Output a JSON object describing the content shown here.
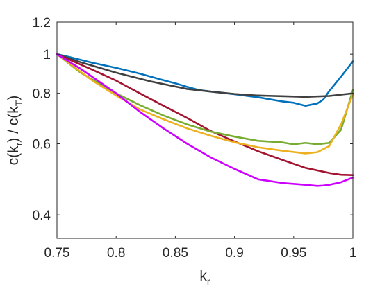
{
  "chart_data": {
    "type": "line",
    "title": "",
    "xlabel": {
      "main": "k",
      "sub": "r"
    },
    "ylabel": {
      "num_main": "c(k",
      "num_sub": "r",
      "mid": ") / c(k",
      "den_sub": "T",
      "end": ")"
    },
    "xlim": [
      0.75,
      1.0
    ],
    "ylim": [
      0.35,
      1.2
    ],
    "yscale": "log",
    "xticks": [
      0.75,
      0.8,
      0.85,
      0.9,
      0.95,
      1.0
    ],
    "xtick_labels": [
      "0.75",
      "0.8",
      "0.85",
      "0.9",
      "0.95",
      "1"
    ],
    "yticks": [
      0.4,
      0.6,
      0.8,
      1.0,
      1.2
    ],
    "ytick_labels": [
      "0.4",
      "0.6",
      "0.8",
      "1",
      "1.2"
    ],
    "grid": false,
    "legend": "none",
    "series": [
      {
        "color": "#0072BD",
        "x": [
          0.75,
          0.76,
          0.78,
          0.8,
          0.82,
          0.84,
          0.85,
          0.86,
          0.87,
          0.88,
          0.9,
          0.92,
          0.94,
          0.95,
          0.96,
          0.97,
          0.975,
          0.98,
          0.99,
          1.0
        ],
        "y": [
          1.0,
          0.985,
          0.952,
          0.925,
          0.895,
          0.862,
          0.847,
          0.83,
          0.815,
          0.808,
          0.796,
          0.782,
          0.764,
          0.758,
          0.745,
          0.755,
          0.772,
          0.81,
          0.88,
          0.96
        ]
      },
      {
        "color": "#404040",
        "x": [
          0.75,
          0.77,
          0.8,
          0.83,
          0.86,
          0.88,
          0.9,
          0.92,
          0.94,
          0.96,
          0.98,
          1.0
        ],
        "y": [
          1.0,
          0.955,
          0.9,
          0.855,
          0.82,
          0.808,
          0.797,
          0.79,
          0.787,
          0.784,
          0.788,
          0.8
        ]
      },
      {
        "color": "#A2142F",
        "x": [
          0.75,
          0.78,
          0.8,
          0.82,
          0.84,
          0.86,
          0.88,
          0.9,
          0.92,
          0.94,
          0.96,
          0.98,
          0.99,
          1.0
        ],
        "y": [
          1.0,
          0.915,
          0.86,
          0.8,
          0.745,
          0.695,
          0.645,
          0.608,
          0.575,
          0.548,
          0.523,
          0.508,
          0.503,
          0.502
        ]
      },
      {
        "color": "#77AC30",
        "x": [
          0.75,
          0.77,
          0.8,
          0.82,
          0.84,
          0.86,
          0.88,
          0.9,
          0.92,
          0.94,
          0.95,
          0.96,
          0.97,
          0.98,
          0.99,
          1.0
        ],
        "y": [
          1.0,
          0.9,
          0.8,
          0.748,
          0.705,
          0.67,
          0.643,
          0.625,
          0.61,
          0.605,
          0.598,
          0.603,
          0.598,
          0.603,
          0.65,
          0.815
        ]
      },
      {
        "color": "#EDB120",
        "x": [
          0.75,
          0.78,
          0.8,
          0.82,
          0.84,
          0.86,
          0.88,
          0.9,
          0.92,
          0.94,
          0.96,
          0.97,
          0.98,
          0.99,
          1.0
        ],
        "y": [
          1.0,
          0.86,
          0.79,
          0.73,
          0.69,
          0.655,
          0.628,
          0.605,
          0.588,
          0.577,
          0.568,
          0.572,
          0.592,
          0.67,
          0.795
        ]
      },
      {
        "color": "#CC00FF",
        "x": [
          0.75,
          0.77,
          0.8,
          0.82,
          0.84,
          0.86,
          0.88,
          0.9,
          0.92,
          0.94,
          0.96,
          0.97,
          0.975,
          0.98,
          0.99,
          1.0
        ],
        "y": [
          1.0,
          0.92,
          0.8,
          0.72,
          0.655,
          0.6,
          0.555,
          0.52,
          0.49,
          0.48,
          0.475,
          0.472,
          0.473,
          0.475,
          0.482,
          0.495
        ]
      }
    ]
  }
}
